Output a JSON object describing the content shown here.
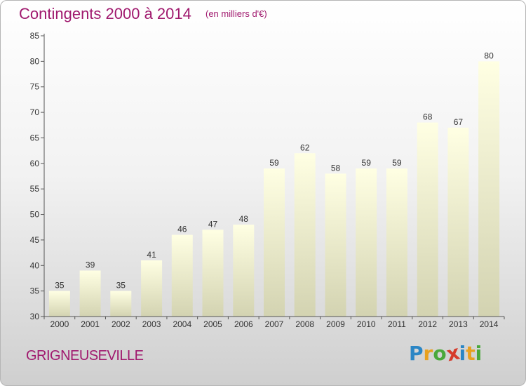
{
  "chart_data": {
    "type": "bar",
    "title": "Contingents 2000 à 2014",
    "unit": "(en milliers d'€)",
    "categories": [
      "2000",
      "2001",
      "2002",
      "2003",
      "2004",
      "2005",
      "2006",
      "2007",
      "2008",
      "2009",
      "2010",
      "2011",
      "2012",
      "2013",
      "2014"
    ],
    "values": [
      35,
      39,
      35,
      41,
      46,
      47,
      48,
      59,
      62,
      58,
      59,
      59,
      68,
      67,
      80
    ],
    "ylim": [
      30,
      85
    ],
    "yticks": [
      30,
      35,
      40,
      45,
      50,
      55,
      60,
      65,
      70,
      75,
      80,
      85
    ],
    "grid": false,
    "xlabel": "",
    "ylabel": ""
  },
  "footer": {
    "commune": "GRIGNEUSEVILLE",
    "logo_letters": [
      "P",
      "r",
      "o",
      "x",
      "i",
      "t",
      "i"
    ],
    "logo_colors": [
      "#2b86c5",
      "#e8a11f",
      "#4aa83b",
      "#d63a2a",
      "#2b86c5",
      "#e8a11f",
      "#4aa83b"
    ]
  },
  "colors": {
    "title": "#a0196e",
    "bar_top": "#ffffe3",
    "bar_bottom": "#d3d3b1"
  }
}
